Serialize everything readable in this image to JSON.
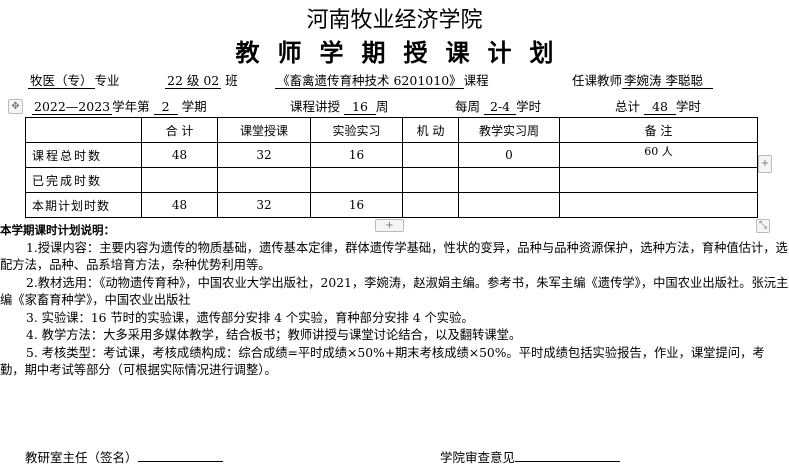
{
  "header": {
    "school": "河南牧业经济学院",
    "title": "教师学期授课计划"
  },
  "info": {
    "major": "牧医（专）",
    "major_suffix": "专业",
    "class": "22 级 02",
    "class_suffix": "班",
    "course": "《畜禽遗传育种技术 6201010》",
    "course_suffix": "课程",
    "teacher_label": "任课教师",
    "teacher": "李婉涛  李聪聪",
    "year": "2022—2023",
    "year_suffix": "学年第",
    "term": "2",
    "term_suffix": "学期",
    "weeks_label": "课程讲授",
    "weeks": "16",
    "weeks_suffix": "周",
    "perweek_label": "每周",
    "perweek": "2-4",
    "perweek_suffix": "学时",
    "total_label": "总计",
    "total": "48",
    "total_suffix": "学时"
  },
  "table": {
    "headers": [
      "",
      "合  计",
      "课堂授课",
      "实验实习",
      "机  动",
      "教学实习周",
      "备  注"
    ],
    "rows": [
      [
        "课程总时数",
        "48",
        "32",
        "16",
        "",
        "0",
        "60 人"
      ],
      [
        "已完成时数",
        "",
        "",
        "",
        "",
        "",
        ""
      ],
      [
        "本期计划时数",
        "48",
        "32",
        "16",
        "",
        "",
        ""
      ]
    ]
  },
  "notes": {
    "title": "本学期课时计划说明：",
    "items": [
      "1.授课内容：主要内容为遗传的物质基础，遗传基本定律，群体遗传学基础，性状的变异，品种与品种资源保护，选种方法，育种值估计，选配方法，品种、品系培育方法，杂种优势利用等。",
      "2.教材选用：《动物遗传育种》，中国农业大学出版社，2021，李婉涛，赵淑娟主编。参考书，朱军主编《遗传学》，中国农业出版社。张沅主编《家畜育种学》，中国农业出版社",
      "3. 实验课：16 节时的实验课，遗传部分安排 4 个实验，育种部分安排 4 个实验。",
      "4. 教学方法：大多采用多媒体教学，结合板书；教师讲授与课堂讨论结合，以及翻转课堂。",
      "5. 考核类型：考试课，考核成绩构成：综合成绩=平时成绩×50%+期末考核成绩×50%。平时成绩包括实验报告，作业，课堂提问，考勤，期中考试等部分（可根据实际情况进行调整）。"
    ]
  },
  "footer": {
    "left": "教研室主任（签名）",
    "right": "学院审查意见"
  }
}
